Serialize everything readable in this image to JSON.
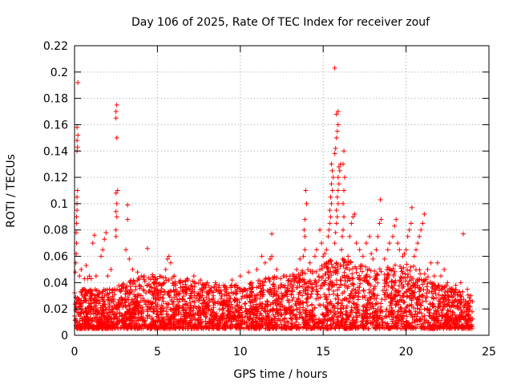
{
  "chart_data": {
    "type": "scatter",
    "title": "Day 106 of 2025, Rate Of TEC Index for receiver zouf",
    "xlabel": "GPS time / hours",
    "ylabel": "ROTI / TECUs",
    "xlim": [
      0,
      25
    ],
    "ylim": [
      0,
      0.22
    ],
    "x_ticks": [
      0,
      5,
      10,
      15,
      20,
      25
    ],
    "y_ticks": [
      0,
      0.02,
      0.04,
      0.06,
      0.08,
      0.1,
      0.12,
      0.14,
      0.16,
      0.18,
      0.2,
      0.22
    ],
    "x_tick_labels": [
      "0",
      "5",
      "10",
      "15",
      "20",
      "25"
    ],
    "y_tick_labels": [
      "0",
      "0.02",
      "0.04",
      "0.06",
      "0.08",
      "0.1",
      "0.12",
      "0.14",
      "0.16",
      "0.18",
      "0.2",
      "0.22"
    ],
    "grid": true,
    "marker": "+",
    "marker_color": "#ff0000",
    "series": [
      {
        "points": [
          [
            0.05,
            0.048
          ],
          [
            0.08,
            0.055
          ],
          [
            0.1,
            0.062
          ],
          [
            0.12,
            0.07
          ],
          [
            0.1,
            0.078
          ],
          [
            0.12,
            0.085
          ],
          [
            0.12,
            0.09
          ],
          [
            0.15,
            0.095
          ],
          [
            0.15,
            0.1
          ],
          [
            0.15,
            0.105
          ],
          [
            0.18,
            0.11
          ],
          [
            0.15,
            0.14
          ],
          [
            0.18,
            0.143
          ],
          [
            0.15,
            0.148
          ],
          [
            0.2,
            0.152
          ],
          [
            0.15,
            0.158
          ],
          [
            0.2,
            0.192
          ],
          [
            0.3,
            0.045
          ],
          [
            0.4,
            0.05
          ],
          [
            0.6,
            0.043
          ],
          [
            0.7,
            0.053
          ],
          [
            0.8,
            0.043
          ],
          [
            0.9,
            0.045
          ],
          [
            1.0,
            0.043
          ],
          [
            1.1,
            0.07
          ],
          [
            1.2,
            0.076
          ],
          [
            1.3,
            0.045
          ],
          [
            1.6,
            0.06
          ],
          [
            1.7,
            0.065
          ],
          [
            1.8,
            0.073
          ],
          [
            1.9,
            0.078
          ],
          [
            2.0,
            0.045
          ],
          [
            2.2,
            0.05
          ],
          [
            2.5,
            0.075
          ],
          [
            2.5,
            0.08
          ],
          [
            2.55,
            0.09
          ],
          [
            2.5,
            0.094
          ],
          [
            2.55,
            0.1
          ],
          [
            2.5,
            0.108
          ],
          [
            2.6,
            0.11
          ],
          [
            2.55,
            0.15
          ],
          [
            2.5,
            0.165
          ],
          [
            2.5,
            0.17
          ],
          [
            2.55,
            0.175
          ],
          [
            3.1,
            0.065
          ],
          [
            3.2,
            0.088
          ],
          [
            3.2,
            0.099
          ],
          [
            3.3,
            0.058
          ],
          [
            3.5,
            0.05
          ],
          [
            3.8,
            0.048
          ],
          [
            4.2,
            0.045
          ],
          [
            4.4,
            0.066
          ],
          [
            4.7,
            0.046
          ],
          [
            5.0,
            0.043
          ],
          [
            5.5,
            0.05
          ],
          [
            5.6,
            0.058
          ],
          [
            5.7,
            0.06
          ],
          [
            5.8,
            0.055
          ],
          [
            6.0,
            0.045
          ],
          [
            6.4,
            0.04
          ],
          [
            6.8,
            0.043
          ],
          [
            7.2,
            0.045
          ],
          [
            7.6,
            0.042
          ],
          [
            8.0,
            0.04
          ],
          [
            8.5,
            0.04
          ],
          [
            9.0,
            0.038
          ],
          [
            9.5,
            0.042
          ],
          [
            10.0,
            0.045
          ],
          [
            10.5,
            0.048
          ],
          [
            11.0,
            0.05
          ],
          [
            11.3,
            0.06
          ],
          [
            11.5,
            0.055
          ],
          [
            11.8,
            0.058
          ],
          [
            11.9,
            0.06
          ],
          [
            11.9,
            0.077
          ],
          [
            12.2,
            0.05
          ],
          [
            12.6,
            0.045
          ],
          [
            13.0,
            0.045
          ],
          [
            13.4,
            0.05
          ],
          [
            13.6,
            0.058
          ],
          [
            13.8,
            0.06
          ],
          [
            13.9,
            0.065
          ],
          [
            13.9,
            0.075
          ],
          [
            13.85,
            0.08
          ],
          [
            13.9,
            0.088
          ],
          [
            14.0,
            0.1
          ],
          [
            13.95,
            0.11
          ],
          [
            14.2,
            0.055
          ],
          [
            14.5,
            0.06
          ],
          [
            14.6,
            0.065
          ],
          [
            14.8,
            0.08
          ],
          [
            14.9,
            0.07
          ],
          [
            15.0,
            0.06
          ],
          [
            15.1,
            0.062
          ],
          [
            15.2,
            0.065
          ],
          [
            15.3,
            0.075
          ],
          [
            15.35,
            0.08
          ],
          [
            15.4,
            0.085
          ],
          [
            15.45,
            0.09
          ],
          [
            15.4,
            0.095
          ],
          [
            15.5,
            0.1
          ],
          [
            15.45,
            0.105
          ],
          [
            15.55,
            0.11
          ],
          [
            15.5,
            0.115
          ],
          [
            15.6,
            0.12
          ],
          [
            15.55,
            0.125
          ],
          [
            15.5,
            0.13
          ],
          [
            15.7,
            0.07
          ],
          [
            15.75,
            0.078
          ],
          [
            15.8,
            0.085
          ],
          [
            15.85,
            0.09
          ],
          [
            15.8,
            0.095
          ],
          [
            15.9,
            0.1
          ],
          [
            15.85,
            0.105
          ],
          [
            15.9,
            0.11
          ],
          [
            15.95,
            0.115
          ],
          [
            15.9,
            0.12
          ],
          [
            16.0,
            0.125
          ],
          [
            15.95,
            0.128
          ],
          [
            16.05,
            0.13
          ],
          [
            15.7,
            0.138
          ],
          [
            15.75,
            0.142
          ],
          [
            15.8,
            0.15
          ],
          [
            15.85,
            0.155
          ],
          [
            15.9,
            0.16
          ],
          [
            15.8,
            0.168
          ],
          [
            15.9,
            0.17
          ],
          [
            15.7,
            0.203
          ],
          [
            16.1,
            0.065
          ],
          [
            16.15,
            0.075
          ],
          [
            16.2,
            0.08
          ],
          [
            16.25,
            0.09
          ],
          [
            16.2,
            0.1
          ],
          [
            16.25,
            0.11
          ],
          [
            16.3,
            0.12
          ],
          [
            16.2,
            0.13
          ],
          [
            16.25,
            0.14
          ],
          [
            16.5,
            0.06
          ],
          [
            16.6,
            0.075
          ],
          [
            16.7,
            0.085
          ],
          [
            16.8,
            0.09
          ],
          [
            16.9,
            0.092
          ],
          [
            17.0,
            0.07
          ],
          [
            17.2,
            0.065
          ],
          [
            17.4,
            0.06
          ],
          [
            17.6,
            0.07
          ],
          [
            17.8,
            0.075
          ],
          [
            17.9,
            0.062
          ],
          [
            18.0,
            0.058
          ],
          [
            18.2,
            0.065
          ],
          [
            18.3,
            0.075
          ],
          [
            18.4,
            0.085
          ],
          [
            18.5,
            0.088
          ],
          [
            18.45,
            0.103
          ],
          [
            18.7,
            0.058
          ],
          [
            18.9,
            0.065
          ],
          [
            19.0,
            0.07
          ],
          [
            19.2,
            0.075
          ],
          [
            19.3,
            0.083
          ],
          [
            19.4,
            0.088
          ],
          [
            19.5,
            0.07
          ],
          [
            19.6,
            0.065
          ],
          [
            19.8,
            0.06
          ],
          [
            19.9,
            0.062
          ],
          [
            20.0,
            0.065
          ],
          [
            20.1,
            0.075
          ],
          [
            20.2,
            0.08
          ],
          [
            20.3,
            0.085
          ],
          [
            20.35,
            0.097
          ],
          [
            20.5,
            0.06
          ],
          [
            20.6,
            0.065
          ],
          [
            20.7,
            0.07
          ],
          [
            20.8,
            0.075
          ],
          [
            20.9,
            0.08
          ],
          [
            21.0,
            0.085
          ],
          [
            21.1,
            0.092
          ],
          [
            21.3,
            0.05
          ],
          [
            21.5,
            0.055
          ],
          [
            21.7,
            0.045
          ],
          [
            21.9,
            0.055
          ],
          [
            22.1,
            0.045
          ],
          [
            22.3,
            0.05
          ],
          [
            22.5,
            0.04
          ],
          [
            22.7,
            0.035
          ],
          [
            23.0,
            0.038
          ],
          [
            23.3,
            0.04
          ],
          [
            23.45,
            0.077
          ],
          [
            23.7,
            0.035
          ],
          [
            23.9,
            0.03
          ]
        ]
      }
    ],
    "background_noise": {
      "seed": 106,
      "count": 3600,
      "x_range": [
        0,
        24
      ],
      "profile_hours": [
        0,
        2,
        4,
        6,
        8,
        10,
        12,
        14,
        15,
        16,
        17,
        18,
        20,
        21,
        22,
        24
      ],
      "profile_upper": [
        0.035,
        0.035,
        0.045,
        0.045,
        0.04,
        0.038,
        0.045,
        0.05,
        0.055,
        0.06,
        0.055,
        0.05,
        0.055,
        0.05,
        0.04,
        0.03
      ],
      "floor": 0.005
    }
  }
}
